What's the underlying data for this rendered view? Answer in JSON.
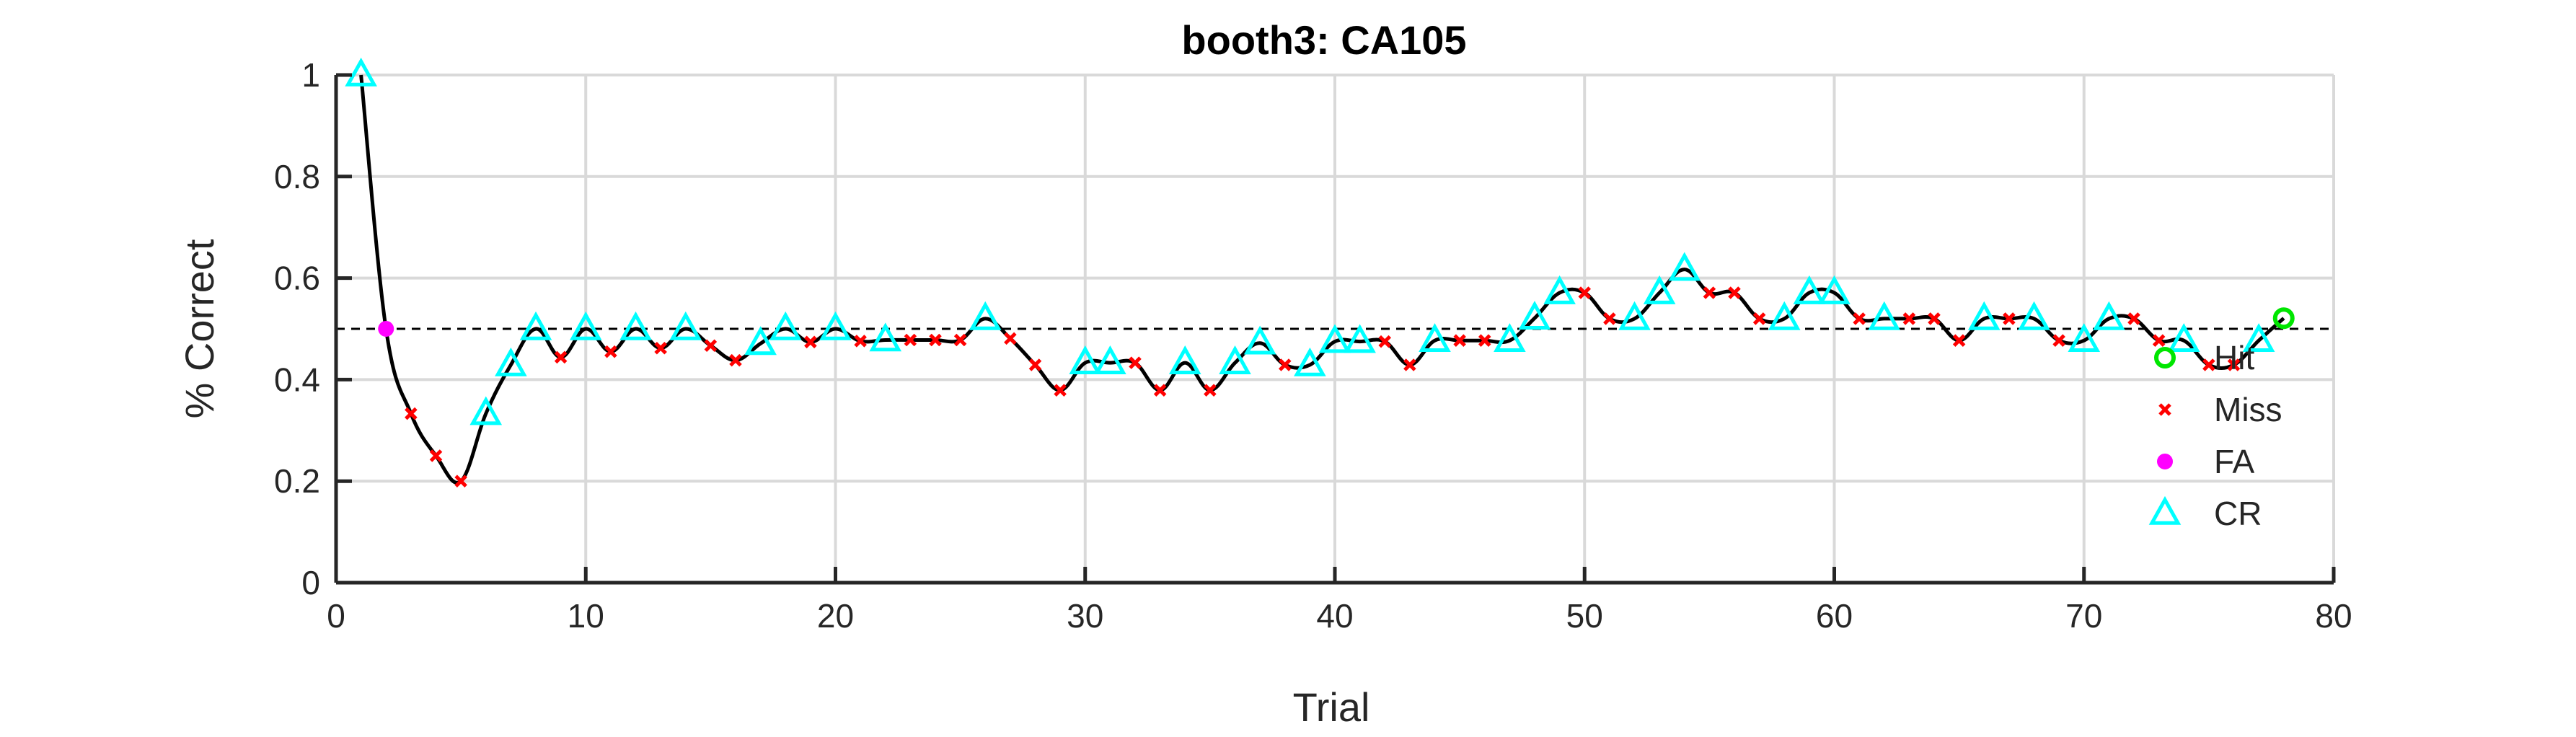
{
  "chart_data": {
    "type": "line",
    "title": "booth3: CA105",
    "xlabel": "Trial",
    "ylabel": "% Correct",
    "xlim": [
      0,
      80
    ],
    "ylim": [
      0,
      1
    ],
    "xticks": [
      "0",
      "10",
      "20",
      "30",
      "40",
      "50",
      "60",
      "70",
      "80"
    ],
    "yticks": [
      "0",
      "0.2",
      "0.4",
      "0.6",
      "0.8",
      "1"
    ],
    "grid": true,
    "chance_line": 0.5,
    "legend_position": "right",
    "legend": [
      {
        "name": "Hit",
        "marker": "circle",
        "color": "#00e600"
      },
      {
        "name": "Miss",
        "marker": "x",
        "color": "#ff0000"
      },
      {
        "name": "FA",
        "marker": "dot",
        "color": "#ff00ff"
      },
      {
        "name": "CR",
        "marker": "triangle",
        "color": "#00ffff"
      }
    ],
    "x": [
      1,
      2,
      3,
      4,
      5,
      6,
      7,
      8,
      9,
      10,
      11,
      12,
      13,
      14,
      15,
      16,
      17,
      18,
      19,
      20,
      21,
      22,
      23,
      24,
      25,
      26,
      27,
      28,
      29,
      30,
      31,
      32,
      33,
      34,
      35,
      36,
      37,
      38,
      39,
      40,
      41,
      42,
      43,
      44,
      45,
      46,
      47,
      48,
      49,
      50,
      51,
      52,
      53,
      54,
      55,
      56,
      57,
      58,
      59,
      60,
      61,
      62,
      63,
      64,
      65,
      66,
      67,
      68,
      69,
      70,
      71,
      72,
      73,
      74,
      75,
      76,
      77,
      78
    ],
    "y": [
      1,
      0.5,
      0.333,
      0.25,
      0.2,
      0.333,
      0.429,
      0.5,
      0.444,
      0.5,
      0.455,
      0.5,
      0.462,
      0.5,
      0.467,
      0.438,
      0.471,
      0.5,
      0.474,
      0.5,
      0.476,
      0.478,
      0.478,
      0.478,
      0.478,
      0.52,
      0.481,
      0.429,
      0.379,
      0.433,
      0.433,
      0.433,
      0.379,
      0.433,
      0.379,
      0.433,
      0.472,
      0.429,
      0.429,
      0.475,
      0.475,
      0.475,
      0.429,
      0.477,
      0.477,
      0.477,
      0.477,
      0.521,
      0.571,
      0.571,
      0.52,
      0.52,
      0.571,
      0.617,
      0.571,
      0.571,
      0.52,
      0.52,
      0.571,
      0.571,
      0.52,
      0.52,
      0.52,
      0.52,
      0.477,
      0.52,
      0.52,
      0.52,
      0.477,
      0.477,
      0.52,
      0.52,
      0.477,
      0.477,
      0.429,
      0.429,
      0.477,
      0.521
    ],
    "outcomes": [
      "CR",
      "FA",
      "Miss",
      "Miss",
      "Miss",
      "CR",
      "CR",
      "CR",
      "Miss",
      "CR",
      "Miss",
      "CR",
      "Miss",
      "CR",
      "Miss",
      "Miss",
      "CR",
      "CR",
      "Miss",
      "CR",
      "Miss",
      "CR",
      "Miss",
      "Miss",
      "Miss",
      "CR",
      "Miss",
      "Miss",
      "Miss",
      "CR",
      "CR",
      "Miss",
      "Miss",
      "CR",
      "Miss",
      "CR",
      "CR",
      "Miss",
      "CR",
      "CR",
      "CR",
      "Miss",
      "Miss",
      "CR",
      "Miss",
      "Miss",
      "CR",
      "CR",
      "CR",
      "Miss",
      "Miss",
      "CR",
      "CR",
      "CR",
      "Miss",
      "Miss",
      "Miss",
      "CR",
      "CR",
      "CR",
      "Miss",
      "CR",
      "Miss",
      "Miss",
      "Miss",
      "CR",
      "Miss",
      "CR",
      "Miss",
      "CR",
      "CR",
      "Miss",
      "Miss",
      "CR",
      "Miss",
      "Miss",
      "CR",
      "Hit"
    ]
  }
}
